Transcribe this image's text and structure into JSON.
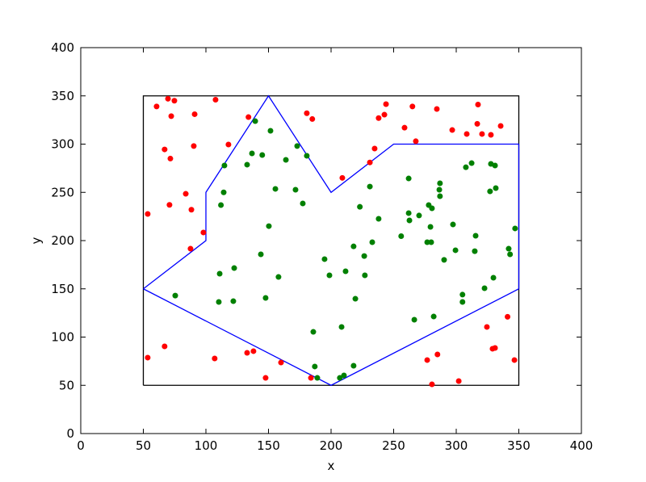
{
  "chart_data": {
    "type": "scatter",
    "xlabel": "x",
    "ylabel": "y",
    "xlim": [
      0,
      400
    ],
    "ylim": [
      0,
      400
    ],
    "xticks": [
      0,
      50,
      100,
      150,
      200,
      250,
      300,
      350,
      400
    ],
    "yticks": [
      0,
      50,
      100,
      150,
      200,
      250,
      300,
      350,
      400
    ],
    "lines": [
      {
        "color": "#000000",
        "x": [
          50,
          350,
          350,
          50,
          50
        ],
        "values": [
          50,
          50,
          350,
          350,
          50
        ]
      },
      {
        "color": "#0000ff",
        "x": [
          50,
          100,
          100,
          150,
          200,
          250,
          350,
          350,
          200,
          50
        ],
        "values": [
          150,
          200,
          250,
          350,
          250,
          300,
          300,
          150,
          50,
          150
        ]
      }
    ],
    "series": [
      {
        "color": "#ff0000",
        "x": [
          60.6,
          69.7,
          74.8,
          72.3,
          91,
          107.7,
          67,
          71.6,
          90.3,
          118,
          134,
          180.6,
          185,
          83.9,
          70.9,
          88.4,
          53.5,
          98,
          87.7,
          209,
          231,
          234.8,
          238,
          242.6,
          243.9,
          258.7,
          265,
          267.7,
          284.5,
          296.8,
          308.4,
          316.8,
          317.4,
          320.6,
          327.7,
          335.5,
          53.5,
          67,
          107,
          132.9,
          138,
          160,
          147.7,
          183.9,
          276.8,
          285,
          280.6,
          302,
          324.5,
          329,
          331,
          341,
          346.5
        ],
        "values": [
          339,
          347,
          345,
          329,
          331,
          346,
          294.5,
          285,
          298,
          299.6,
          328,
          332,
          326,
          248.5,
          237,
          232,
          227.6,
          208.4,
          191.6,
          265,
          281,
          295.4,
          327,
          330.5,
          341.4,
          317,
          339,
          303,
          336.4,
          314.6,
          310.5,
          321,
          341,
          310.5,
          309.6,
          318.8,
          78.7,
          90.4,
          77.8,
          83.7,
          85.4,
          73.6,
          57.7,
          57.7,
          76.2,
          82,
          51,
          54.4,
          110.5,
          87.9,
          88.7,
          121,
          76.2
        ]
      },
      {
        "color": "#008000",
        "x": [
          114.8,
          114.2,
          112,
          132.9,
          136.8,
          139.4,
          145,
          151.6,
          163.9,
          172.9,
          180.6,
          155.5,
          171.6,
          177.4,
          150.3,
          143.9,
          158,
          111,
          122.6,
          75.5,
          110.3,
          121.9,
          147.7,
          194.8,
          198.7,
          211.6,
          218,
          223,
          226.5,
          227,
          231,
          232.9,
          238,
          219.4,
          185.8,
          208.4,
          187,
          189,
          207,
          210.3,
          218,
          256,
          262,
          262,
          262.6,
          270.3,
          278,
          280.6,
          279.4,
          276.8,
          280,
          287,
          286.5,
          287,
          290.3,
          297.4,
          299.4,
          307.7,
          312.3,
          315.5,
          314.8,
          327,
          327.7,
          331,
          331.6,
          329.7,
          322.6,
          305,
          305,
          282,
          266.5,
          341.9,
          343,
          347
        ],
        "values": [
          277.8,
          250,
          236.8,
          278.7,
          290.4,
          323.8,
          288.7,
          313.8,
          283.7,
          298,
          287.9,
          253.6,
          252.7,
          238.5,
          215,
          185.8,
          162.3,
          165.7,
          171.5,
          143,
          136.4,
          137.2,
          140.6,
          180.8,
          164,
          168.2,
          194,
          235,
          184,
          164,
          256,
          198.3,
          222.6,
          139.7,
          105.4,
          110.5,
          69.5,
          57.7,
          57.7,
          60.3,
          70.3,
          204.6,
          264.4,
          228.5,
          220.9,
          226,
          236.8,
          233.5,
          214.2,
          198.3,
          198.3,
          259.4,
          252.7,
          246,
          180,
          216.7,
          190,
          276,
          280.3,
          205,
          189,
          251,
          279.5,
          277.8,
          254.4,
          161.5,
          150.6,
          144,
          136.4,
          121.3,
          118,
          191.6,
          185.8,
          212.6
        ]
      }
    ]
  }
}
